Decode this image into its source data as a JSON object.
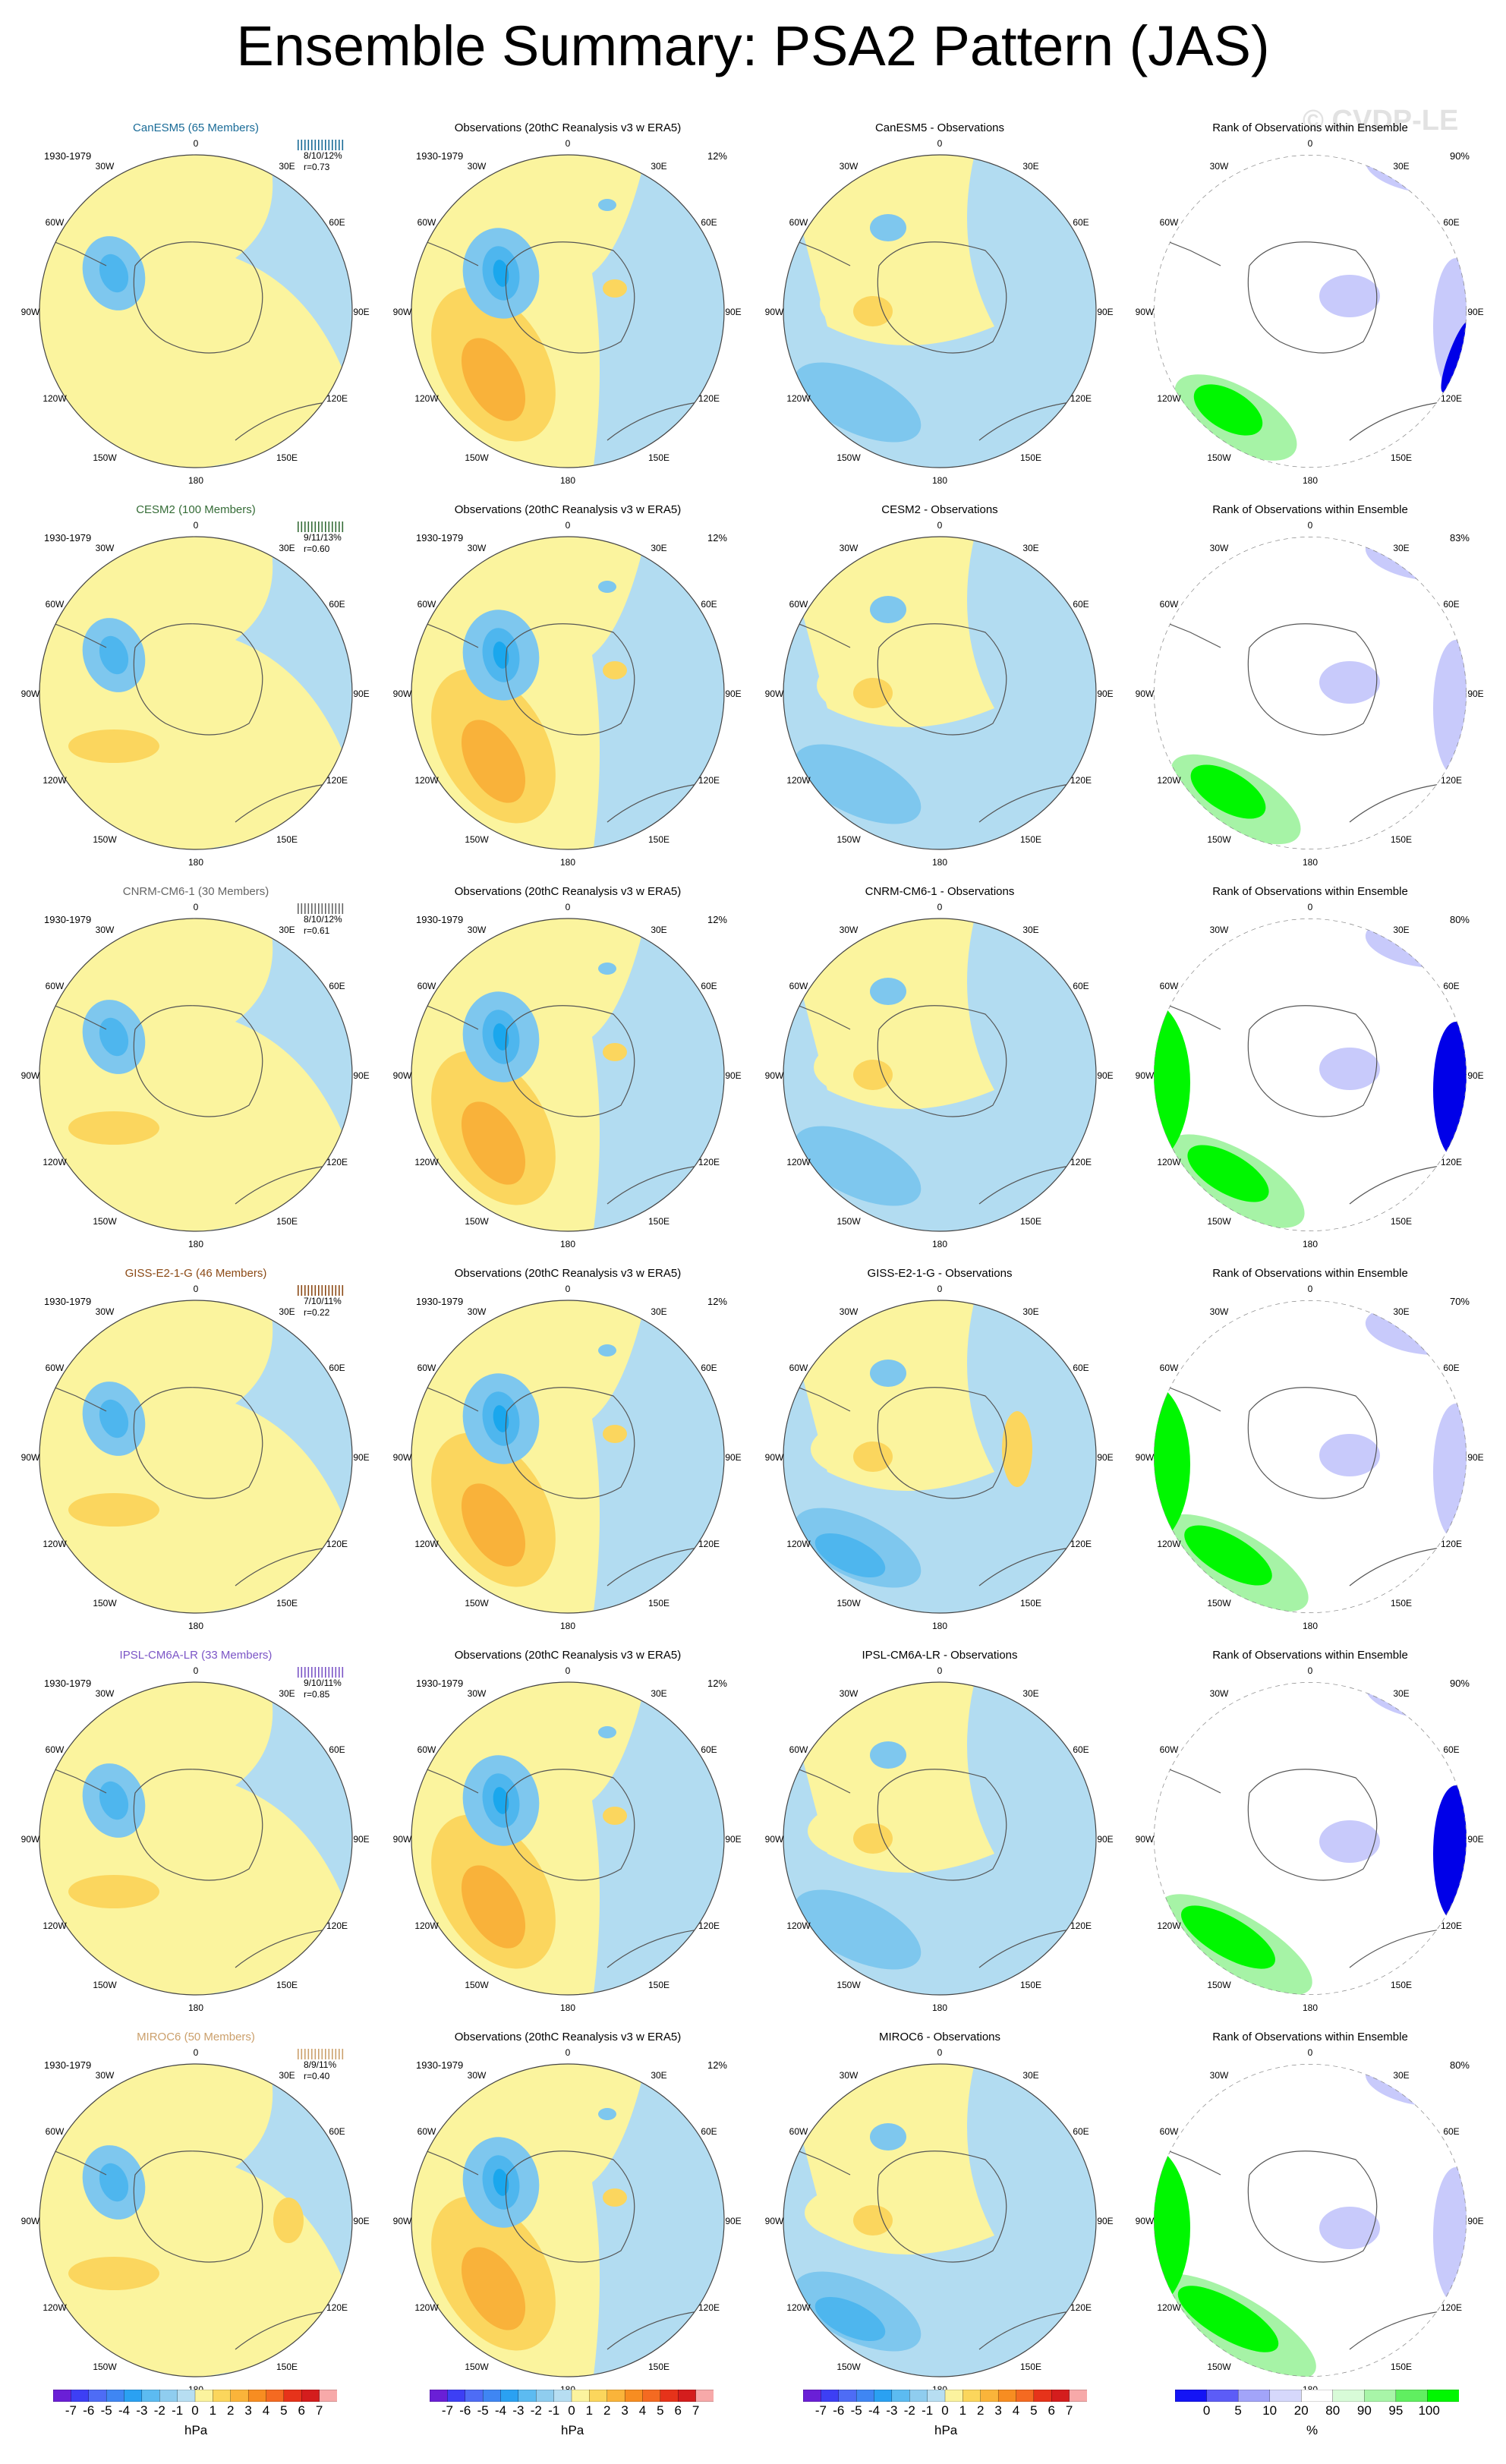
{
  "title": "Ensemble Summary: PSA2 Pattern (JAS)",
  "watermark": "© CVDP-LE",
  "colors": {
    "ocean_blue": "#b2dcf1",
    "blue2": "#7ec7ee",
    "blue3": "#4eb6ee",
    "blue4": "#1aa7ed",
    "yellow1": "#fbf49e",
    "yellow2": "#fbd65e",
    "yellow3": "#f9b23a",
    "yellow4": "#f78d20",
    "green_bright": "#00f700",
    "green_light": "#a6f3a6",
    "blue_rank": "#0000e8",
    "blue_rank_light": "#c8cafb",
    "coast": "#555555"
  },
  "rows": [
    {
      "model": "CanESM5 (65 Members)",
      "model_color": "#196b97",
      "period": "1930-1979",
      "stats": [
        "8/10/12%",
        "r=0.73"
      ],
      "obs_pct": "12%",
      "diff_title": "CanESM5 - Observations",
      "rank_pct": "90%"
    },
    {
      "model": "CESM2 (100 Members)",
      "model_color": "#356c37",
      "period": "1930-1979",
      "stats": [
        "9/11/13%",
        "r=0.60"
      ],
      "obs_pct": "12%",
      "diff_title": "CESM2 - Observations",
      "rank_pct": "83%"
    },
    {
      "model": "CNRM-CM6-1 (30 Members)",
      "model_color": "#656565",
      "period": "1930-1979",
      "stats": [
        "8/10/12%",
        "r=0.61"
      ],
      "obs_pct": "12%",
      "diff_title": "CNRM-CM6-1 - Observations",
      "rank_pct": "80%"
    },
    {
      "model": "GISS-E2-1-G (46 Members)",
      "model_color": "#8b4a16",
      "period": "1930-1979",
      "stats": [
        "7/10/11%",
        "r=0.22"
      ],
      "obs_pct": "12%",
      "diff_title": "GISS-E2-1-G - Observations",
      "rank_pct": "70%"
    },
    {
      "model": "IPSL-CM6A-LR (33 Members)",
      "model_color": "#7b55c6",
      "period": "1930-1979",
      "stats": [
        "9/10/11%",
        "r=0.85"
      ],
      "obs_pct": "12%",
      "diff_title": "IPSL-CM6A-LR - Observations",
      "rank_pct": "90%"
    },
    {
      "model": "MIROC6 (50 Members)",
      "model_color": "#cba06c",
      "period": "1930-1979",
      "stats": [
        "8/9/11%",
        "r=0.40"
      ],
      "obs_pct": "12%",
      "diff_title": "MIROC6 - Observations",
      "rank_pct": "80%"
    }
  ],
  "obs_title": "Observations (20thC Reanalysis v3 w ERA5)",
  "rank_title": "Rank of Observations within Ensemble",
  "lon_labels": {
    "top": "0",
    "bottom": "180",
    "left": "90W",
    "right": "90E",
    "nw1": "30W",
    "nw2": "60W",
    "sw1": "120W",
    "sw2": "150W",
    "ne1": "30E",
    "ne2": "60E",
    "se1": "120E",
    "se2": "150E"
  },
  "colorbars": {
    "hpa": {
      "ticks": [
        "-7",
        "-6",
        "-5",
        "-4",
        "-3",
        "-2",
        "-1",
        "0",
        "1",
        "2",
        "3",
        "4",
        "5",
        "6",
        "7"
      ],
      "colors": [
        "#6a1fd6",
        "#3d3ff4",
        "#4e6cf5",
        "#3f86f3",
        "#2aa1f2",
        "#5cbbf1",
        "#8fcdef",
        "#b7def2",
        "#fbf39e",
        "#fbd65c",
        "#fab43a",
        "#f78d21",
        "#f46a21",
        "#e6331a",
        "#d41d1d",
        "#f7a9a9"
      ],
      "unit": "hPa"
    },
    "rank": {
      "ticks": [
        "0",
        "5",
        "10",
        "20",
        "80",
        "90",
        "95",
        "100"
      ],
      "colors": [
        "#1414f5",
        "#5c5cf7",
        "#a2a4f9",
        "#d6d8fb",
        "#ffffff",
        "#d8fbd8",
        "#a8f5a8",
        "#60ef60",
        "#00f700"
      ],
      "unit": "%"
    }
  }
}
